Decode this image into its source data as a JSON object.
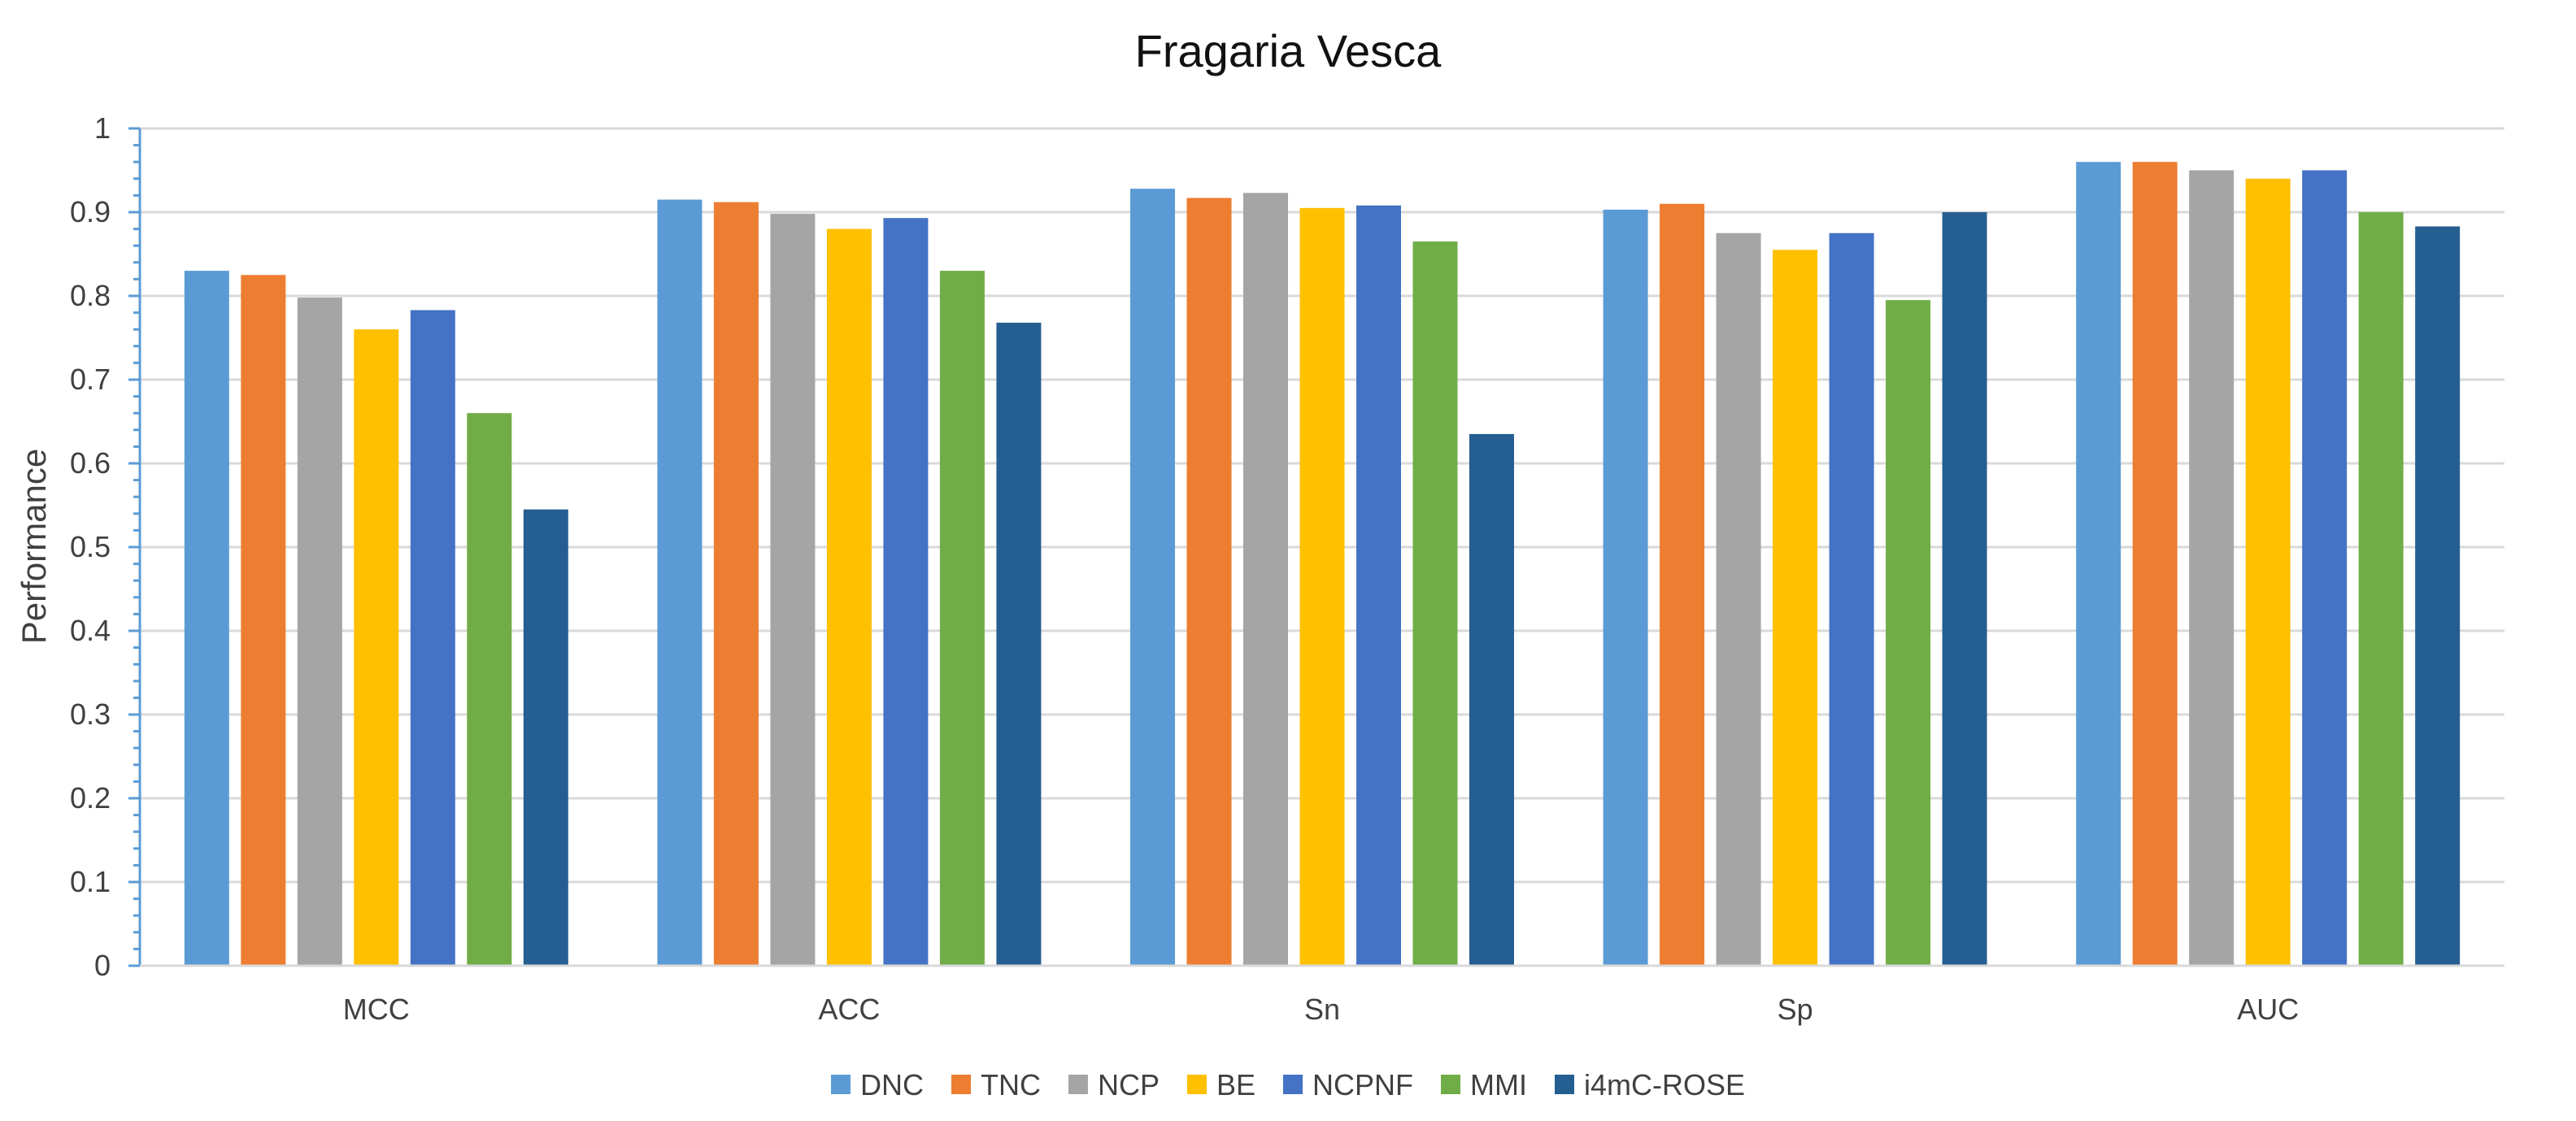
{
  "chart_data": {
    "type": "bar",
    "title": "Fragaria Vesca",
    "xlabel": "",
    "ylabel": "Performance",
    "ylim": [
      0,
      1
    ],
    "ytick_step": 0.1,
    "yticks": [
      "0",
      "0.1",
      "0.2",
      "0.3",
      "0.4",
      "0.5",
      "0.6",
      "0.7",
      "0.8",
      "0.9",
      "1"
    ],
    "grid": true,
    "legend_position": "bottom",
    "categories": [
      "MCC",
      "ACC",
      "Sn",
      "Sp",
      "AUC"
    ],
    "series": [
      {
        "name": "DNC",
        "color": "#5B9BD5",
        "values": [
          0.83,
          0.915,
          0.928,
          0.903,
          0.96
        ]
      },
      {
        "name": "TNC",
        "color": "#ED7D31",
        "values": [
          0.825,
          0.912,
          0.917,
          0.91,
          0.96
        ]
      },
      {
        "name": "NCP",
        "color": "#A5A5A5",
        "values": [
          0.798,
          0.898,
          0.923,
          0.875,
          0.95
        ]
      },
      {
        "name": "BE",
        "color": "#FFC000",
        "values": [
          0.76,
          0.88,
          0.905,
          0.855,
          0.94
        ]
      },
      {
        "name": "NCPNF",
        "color": "#4472C4",
        "values": [
          0.783,
          0.893,
          0.908,
          0.875,
          0.95
        ]
      },
      {
        "name": "MMI",
        "color": "#70AD47",
        "values": [
          0.66,
          0.83,
          0.865,
          0.795,
          0.9
        ]
      },
      {
        "name": "i4mC-ROSE",
        "color": "#255E91",
        "values": [
          0.545,
          0.768,
          0.635,
          0.9,
          0.883
        ]
      }
    ]
  }
}
